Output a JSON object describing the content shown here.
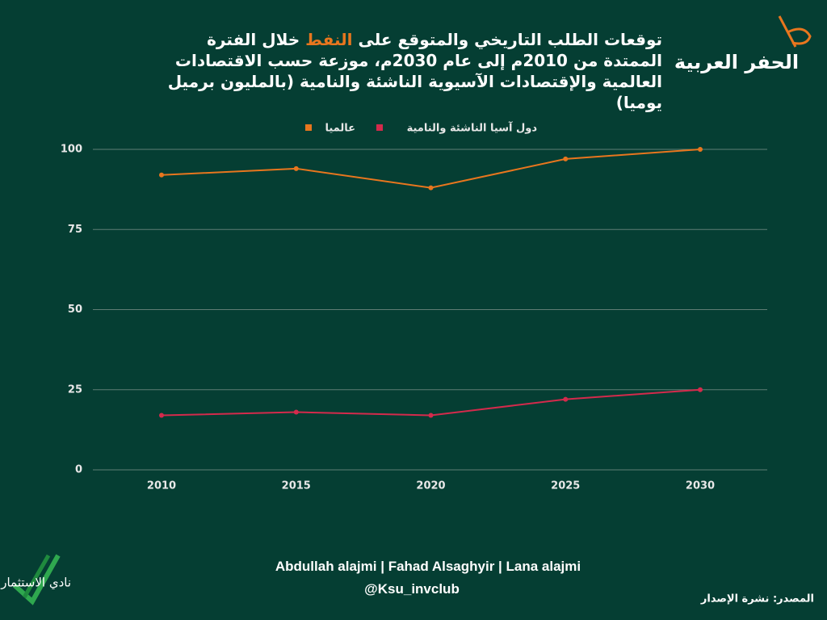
{
  "chart_data": {
    "type": "line",
    "title": [
      "توقعات الطلب التاريخي والمتوقع على ",
      "النفط",
      " خلال الفترة الممتدة من 2010م إلى عام 2030م، موزعة حسب الاقتصادات العالمية والإقتصادات الآسيوية الناشئة والنامية (بالمليون برميل يوميا)"
    ],
    "categories": [
      "2010",
      "2015",
      "2020",
      "2025",
      "2030"
    ],
    "series": [
      {
        "name": "عالميا",
        "color": "#e8761e",
        "values": [
          92,
          94,
          88,
          97,
          100
        ]
      },
      {
        "name": "دول آسيا الناشئة والنامية",
        "color": "#d42a4c",
        "values": [
          17,
          18,
          17,
          22,
          25
        ]
      }
    ],
    "ylim": [
      0,
      100
    ],
    "yticks": [
      0,
      25,
      50,
      75,
      100
    ],
    "grid": true
  },
  "logo": "الحفر العربية",
  "club": "نادي الاستثمار",
  "authors": "Abdullah alajmi | Fahad Alsaghyir | Lana alajmi",
  "handle": "@Ksu_invclub",
  "source": "المصدر: نشرة الإصدار"
}
